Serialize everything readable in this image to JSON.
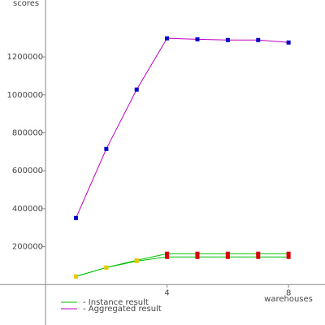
{
  "chart_data": {
    "type": "line",
    "y_label": "scores",
    "x_label": "warehouses",
    "x": [
      1,
      2,
      3,
      4,
      5,
      6,
      7,
      8
    ],
    "xlim": [
      -1.5,
      9.2
    ],
    "xticks": [
      4,
      8
    ],
    "ylim": [
      -200000,
      1500000
    ],
    "yticks": [
      200000,
      400000,
      600000,
      800000,
      1000000,
      1200000
    ],
    "series": [
      {
        "name": "- Instance result",
        "color": "#00c000",
        "marker_colors": [
          "#e8c800",
          "#e8c800",
          "#e8c800",
          "#d80000",
          "#d80000",
          "#d80000",
          "#d80000",
          "#d80000"
        ],
        "lines": [
          [
            43000,
            90000,
            128000,
            163000,
            163000,
            163000,
            163000,
            163000
          ],
          [
            43000,
            90000,
            124000,
            146000,
            146000,
            146000,
            146000,
            146000
          ]
        ]
      },
      {
        "name": "- Aggregated result",
        "color": "#c000c0",
        "marker_colors": [
          "#0000c8",
          "#0000c8",
          "#0000c8",
          "#0000c8",
          "#0000c8",
          "#0000c8",
          "#0000c8",
          "#0000c8"
        ],
        "lines": [
          [
            351000,
            715000,
            1028000,
            1298000,
            1293000,
            1289000,
            1289000,
            1276000
          ]
        ]
      }
    ]
  }
}
